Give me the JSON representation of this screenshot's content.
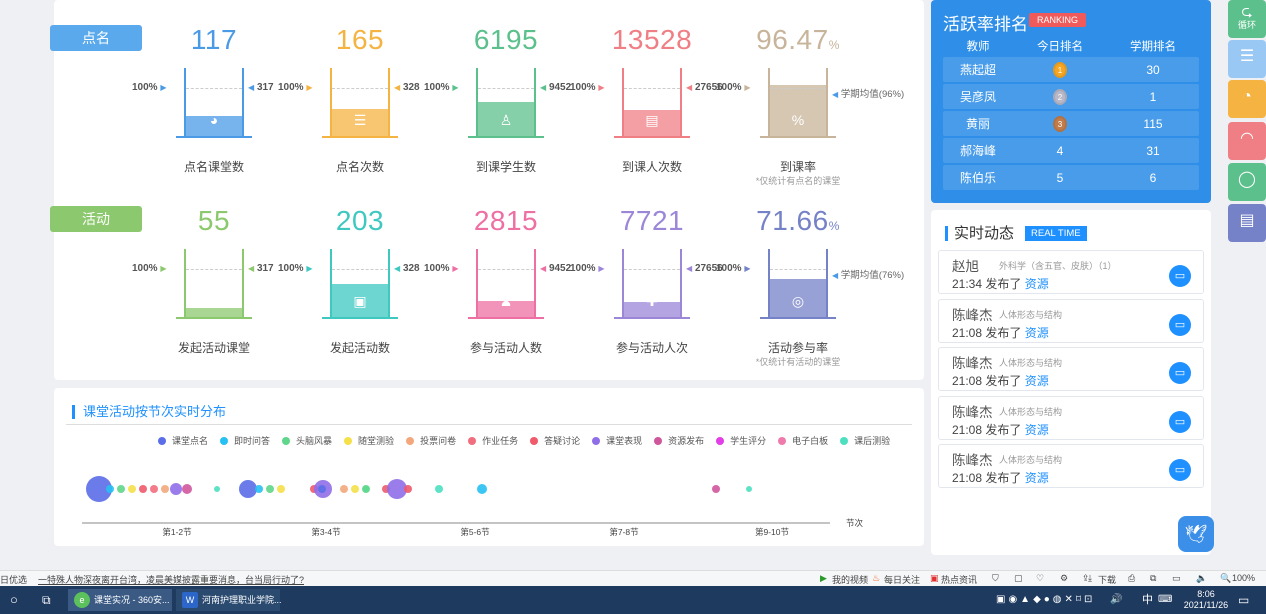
{
  "colors": {
    "blue": "#4a9ae6",
    "orange": "#f5b342",
    "green": "#5cc08c",
    "red": "#ef7f85",
    "tan": "#c8b49a",
    "lgreen": "#8cc86d",
    "teal": "#3ec8c0",
    "pink": "#ee6fa3",
    "purple": "#9b86d8",
    "indigo": "#7682c7",
    "accent": "#1e90ff"
  },
  "section_labels": {
    "dianming": "点名",
    "huodong": "活动"
  },
  "stats_row1": [
    {
      "value": "117",
      "name": "点名课堂数",
      "pct": "100%",
      "max": "317",
      "fill": 0.37,
      "icon": "◕"
    },
    {
      "value": "165",
      "name": "点名次数",
      "pct": "100%",
      "max": "328",
      "fill": 0.5,
      "icon": "☰"
    },
    {
      "value": "6195",
      "name": "到课学生数",
      "pct": "100%",
      "max": "9452",
      "fill": 0.65,
      "icon": "♙"
    },
    {
      "value": "13528",
      "name": "到课人次数",
      "pct": "100%",
      "max": "27656",
      "fill": 0.49,
      "icon": "▤"
    },
    {
      "value": "96.47",
      "unit": "%",
      "name": "到课率",
      "pct": "100%",
      "avg": "学期均值(96%)",
      "note": "*仅统计有点名的课堂",
      "fill": 0.96,
      "icon": "%"
    }
  ],
  "stats_row2": [
    {
      "value": "55",
      "name": "发起活动课堂",
      "pct": "100%",
      "max": "317",
      "fill": 0.17,
      "icon": "✓"
    },
    {
      "value": "203",
      "name": "发起活动数",
      "pct": "100%",
      "max": "328",
      "fill": 0.62,
      "icon": "▣"
    },
    {
      "value": "2815",
      "name": "参与活动人数",
      "pct": "100%",
      "max": "9452",
      "fill": 0.3,
      "icon": "♟"
    },
    {
      "value": "7721",
      "name": "参与活动人次",
      "pct": "100%",
      "max": "27656",
      "fill": 0.28,
      "icon": "✚"
    },
    {
      "value": "71.66",
      "unit": "%",
      "name": "活动参与率",
      "pct": "100%",
      "avg": "学期均值(76%)",
      "note": "*仅统计有活动的课堂",
      "fill": 0.72,
      "icon": "◎"
    }
  ],
  "dist": {
    "title": "课堂活动按节次实时分布",
    "legend": [
      {
        "label": "课堂点名",
        "color": "#5b6ee8"
      },
      {
        "label": "即时问答",
        "color": "#27c0f2"
      },
      {
        "label": "头脑风暴",
        "color": "#5fd68a"
      },
      {
        "label": "随堂测验",
        "color": "#f5e04a"
      },
      {
        "label": "投票问卷",
        "color": "#f2a87c"
      },
      {
        "label": "作业任务",
        "color": "#f26d7d"
      },
      {
        "label": "答疑讨论",
        "color": "#f05a6a"
      },
      {
        "label": "课堂表现",
        "color": "#8f6ee8"
      },
      {
        "label": "资源发布",
        "color": "#d0569c"
      },
      {
        "label": "学生评分",
        "color": "#e23ee8"
      },
      {
        "label": "电子白板",
        "color": "#f07aaa"
      },
      {
        "label": "课后测验",
        "color": "#4de0c0"
      }
    ],
    "x_labels": [
      "第1-2节",
      "第3-4节",
      "第5-6节",
      "第7-8节",
      "第9-10节"
    ],
    "axis_label": "节次",
    "points": [
      {
        "slot": 0,
        "offset": 0,
        "type": 0,
        "r": 13
      },
      {
        "slot": 0,
        "offset": 11,
        "type": 1,
        "r": 4
      },
      {
        "slot": 0,
        "offset": 22,
        "type": 2,
        "r": 4
      },
      {
        "slot": 0,
        "offset": 33,
        "type": 3,
        "r": 4
      },
      {
        "slot": 0,
        "offset": 44,
        "type": 6,
        "r": 4
      },
      {
        "slot": 0,
        "offset": 55,
        "type": 5,
        "r": 4
      },
      {
        "slot": 0,
        "offset": 66,
        "type": 4,
        "r": 4
      },
      {
        "slot": 0,
        "offset": 77,
        "type": 7,
        "r": 6
      },
      {
        "slot": 0,
        "offset": 88,
        "type": 8,
        "r": 5
      },
      {
        "slot": 0,
        "offset": 118,
        "type": 11,
        "r": 3
      },
      {
        "slot": 1,
        "offset": 0,
        "type": 0,
        "r": 9
      },
      {
        "slot": 1,
        "offset": 11,
        "type": 1,
        "r": 4
      },
      {
        "slot": 1,
        "offset": 22,
        "type": 2,
        "r": 4
      },
      {
        "slot": 1,
        "offset": 33,
        "type": 3,
        "r": 4
      },
      {
        "slot": 1,
        "offset": 66,
        "type": 6,
        "r": 4
      },
      {
        "slot": 1,
        "offset": 75,
        "type": 7,
        "r": 9
      },
      {
        "slot": 1,
        "offset": 118,
        "type": 11,
        "r": 3
      },
      {
        "slot": 2,
        "offset": -75,
        "type": 0,
        "r": 4
      },
      {
        "slot": 2,
        "offset": -53,
        "type": 4,
        "r": 4
      },
      {
        "slot": 2,
        "offset": -42,
        "type": 3,
        "r": 4
      },
      {
        "slot": 2,
        "offset": -31,
        "type": 2,
        "r": 4
      },
      {
        "slot": 2,
        "offset": -11,
        "type": 6,
        "r": 4
      },
      {
        "slot": 2,
        "offset": 0,
        "type": 7,
        "r": 10
      },
      {
        "slot": 2,
        "offset": 11,
        "type": 6,
        "r": 4
      },
      {
        "slot": 2,
        "offset": 42,
        "type": 11,
        "r": 4
      },
      {
        "slot": 2,
        "offset": 85,
        "type": 1,
        "r": 5
      },
      {
        "slot": 4,
        "offset": 22,
        "type": 8,
        "r": 4
      },
      {
        "slot": 4,
        "offset": 55,
        "type": 11,
        "r": 3
      }
    ]
  },
  "ranking": {
    "title": "活跃率排名",
    "badge": "RANKING",
    "headers": [
      "教师",
      "今日排名",
      "学期排名"
    ],
    "rows": [
      {
        "teacher": "燕起超",
        "today": "1",
        "term": "30"
      },
      {
        "teacher": "吴彦凤",
        "today": "2",
        "term": "1"
      },
      {
        "teacher": "黄丽",
        "today": "3",
        "term": "115"
      },
      {
        "teacher": "郝海峰",
        "today": "4",
        "term": "31"
      },
      {
        "teacher": "陈伯乐",
        "today": "5",
        "term": "6"
      }
    ]
  },
  "realtime": {
    "title": "实时动态",
    "badge": "REAL TIME",
    "items": [
      {
        "name": "赵旭",
        "sub": "外科学（含五官、皮肤）（1）",
        "time": "21:34",
        "action": "发布了",
        "obj": "资源"
      },
      {
        "name": "陈峰杰",
        "sub": "人体形态与结构",
        "time": "21:08",
        "action": "发布了",
        "obj": "资源"
      },
      {
        "name": "陈峰杰",
        "sub": "人体形态与结构",
        "time": "21:08",
        "action": "发布了",
        "obj": "资源"
      },
      {
        "name": "陈峰杰",
        "sub": "人体形态与结构",
        "time": "21:08",
        "action": "发布了",
        "obj": "资源"
      },
      {
        "name": "陈峰杰",
        "sub": "人体形态与结构",
        "time": "21:08",
        "action": "发布了",
        "obj": "资源"
      }
    ]
  },
  "sidebar": {
    "loop_label": "循环"
  },
  "browser": {
    "left": "日优选",
    "news": "一特殊人物深夜离开台湾，凌晨美媒披露重要消息，台当局行动了?",
    "video": "我的视频",
    "follow": "每日关注",
    "hot": "热点资讯",
    "download": "下载",
    "zoom": "100%"
  },
  "taskbar": {
    "app1": "课堂实况 - 360安...",
    "app2": "河南护理职业学院...",
    "time": "8:06",
    "date": "2021/11/26",
    "ime": "中"
  }
}
